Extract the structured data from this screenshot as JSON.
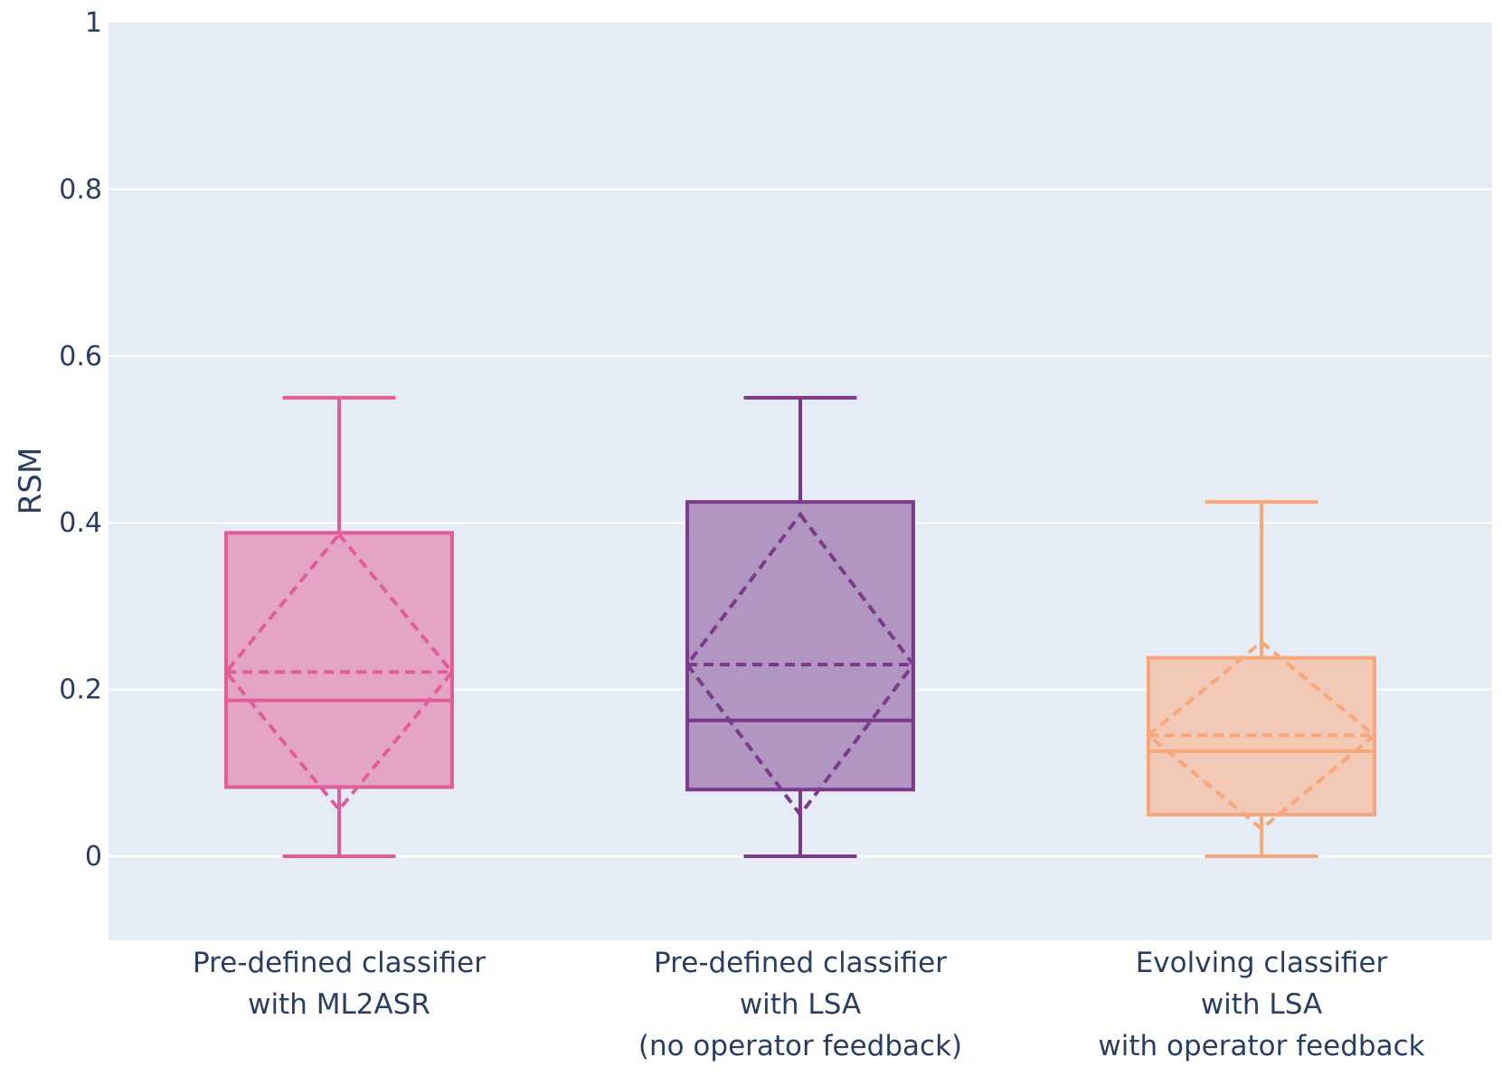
{
  "chart_data": {
    "type": "box",
    "ylabel": "RSM",
    "ylim": [
      -0.1,
      1.0
    ],
    "yticks": [
      0,
      0.2,
      0.4,
      0.6,
      0.8,
      1
    ],
    "ytick_labels": [
      "0",
      "0.2",
      "0.4",
      "0.6",
      "0.8",
      "1"
    ],
    "grid": true,
    "show_mean_sd": true,
    "background": "#e5ecf6",
    "series": [
      {
        "label_lines": [
          "Pre-defined classifier",
          "with ML2ASR"
        ],
        "color": "#e05c9a",
        "fill": "#e3a4c7",
        "min": 0,
        "q1": 0.083,
        "median": 0.187,
        "q3": 0.388,
        "max": 0.55,
        "mean": 0.221,
        "sd": 0.165
      },
      {
        "label_lines": [
          "Pre-defined classifier",
          "with LSA",
          "(no operator feedback)"
        ],
        "color": "#7b3a8a",
        "fill": "#b195c2",
        "min": 0,
        "q1": 0.08,
        "median": 0.163,
        "q3": 0.425,
        "max": 0.55,
        "mean": 0.23,
        "sd": 0.18
      },
      {
        "label_lines": [
          "Evolving classifier",
          "with LSA",
          "with operator feedback"
        ],
        "color": "#f9a679",
        "fill": "#f2c9b6",
        "min": 0,
        "q1": 0.05,
        "median": 0.126,
        "q3": 0.238,
        "max": 0.425,
        "mean": 0.145,
        "sd": 0.112
      }
    ]
  }
}
